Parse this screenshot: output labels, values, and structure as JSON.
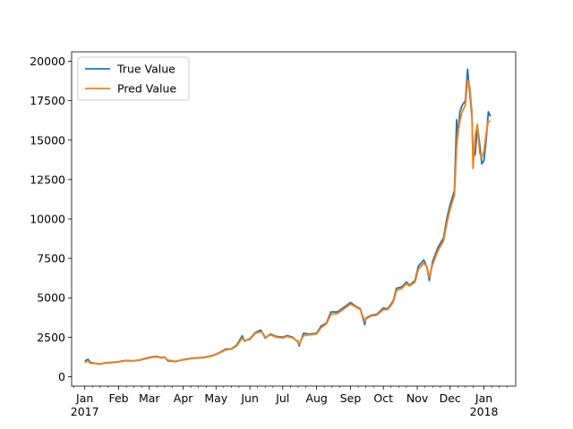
{
  "chart_data": {
    "type": "line",
    "title": "",
    "xlabel": "",
    "ylabel": "",
    "x_range": [
      "2016-12-20",
      "2018-01-30"
    ],
    "ylim": [
      -600,
      20600
    ],
    "yticks": [
      0,
      2500,
      5000,
      7500,
      10000,
      12500,
      15000,
      17500,
      20000
    ],
    "ytick_labels": [
      "0",
      "2500",
      "5000",
      "7500",
      "10000",
      "12500",
      "15000",
      "17500",
      "20000"
    ],
    "month_ticks": [
      {
        "date": "2017-01-01",
        "label": "Jan",
        "year": "2017"
      },
      {
        "date": "2017-02-01",
        "label": "Feb"
      },
      {
        "date": "2017-03-01",
        "label": "Mar"
      },
      {
        "date": "2017-04-01",
        "label": "Apr"
      },
      {
        "date": "2017-05-01",
        "label": "May"
      },
      {
        "date": "2017-06-01",
        "label": "Jun"
      },
      {
        "date": "2017-07-01",
        "label": "Jul"
      },
      {
        "date": "2017-08-01",
        "label": "Aug"
      },
      {
        "date": "2017-09-01",
        "label": "Sep"
      },
      {
        "date": "2017-10-01",
        "label": "Oct"
      },
      {
        "date": "2017-11-01",
        "label": "Nov"
      },
      {
        "date": "2017-12-01",
        "label": "Dec"
      },
      {
        "date": "2018-01-01",
        "label": "Jan",
        "year": "2018"
      }
    ],
    "grid": false,
    "legend_position": "top-left",
    "series": [
      {
        "name": "True Value",
        "color": "#1f77b4",
        "points": [
          [
            "2017-01-01",
            1000
          ],
          [
            "2017-01-04",
            1100
          ],
          [
            "2017-01-06",
            900
          ],
          [
            "2017-01-10",
            850
          ],
          [
            "2017-01-15",
            800
          ],
          [
            "2017-01-20",
            880
          ],
          [
            "2017-01-25",
            900
          ],
          [
            "2017-02-01",
            950
          ],
          [
            "2017-02-07",
            1020
          ],
          [
            "2017-02-14",
            1000
          ],
          [
            "2017-02-20",
            1050
          ],
          [
            "2017-02-25",
            1150
          ],
          [
            "2017-03-03",
            1250
          ],
          [
            "2017-03-08",
            1280
          ],
          [
            "2017-03-12",
            1200
          ],
          [
            "2017-03-15",
            1250
          ],
          [
            "2017-03-18",
            1000
          ],
          [
            "2017-03-25",
            950
          ],
          [
            "2017-04-01",
            1080
          ],
          [
            "2017-04-10",
            1180
          ],
          [
            "2017-04-20",
            1220
          ],
          [
            "2017-04-28",
            1340
          ],
          [
            "2017-05-05",
            1550
          ],
          [
            "2017-05-10",
            1750
          ],
          [
            "2017-05-15",
            1760
          ],
          [
            "2017-05-20",
            2000
          ],
          [
            "2017-05-25",
            2600
          ],
          [
            "2017-05-27",
            2250
          ],
          [
            "2017-06-01",
            2400
          ],
          [
            "2017-06-06",
            2800
          ],
          [
            "2017-06-11",
            2950
          ],
          [
            "2017-06-13",
            2700
          ],
          [
            "2017-06-15",
            2450
          ],
          [
            "2017-06-20",
            2700
          ],
          [
            "2017-06-25",
            2550
          ],
          [
            "2017-07-01",
            2500
          ],
          [
            "2017-07-05",
            2600
          ],
          [
            "2017-07-10",
            2500
          ],
          [
            "2017-07-15",
            2200
          ],
          [
            "2017-07-16",
            1950
          ],
          [
            "2017-07-20",
            2750
          ],
          [
            "2017-07-25",
            2700
          ],
          [
            "2017-08-01",
            2750
          ],
          [
            "2017-08-05",
            3200
          ],
          [
            "2017-08-10",
            3400
          ],
          [
            "2017-08-14",
            4100
          ],
          [
            "2017-08-20",
            4100
          ],
          [
            "2017-08-25",
            4350
          ],
          [
            "2017-09-01",
            4700
          ],
          [
            "2017-09-05",
            4500
          ],
          [
            "2017-09-10",
            4300
          ],
          [
            "2017-09-14",
            3300
          ],
          [
            "2017-09-15",
            3700
          ],
          [
            "2017-09-20",
            3900
          ],
          [
            "2017-09-25",
            3950
          ],
          [
            "2017-10-01",
            4350
          ],
          [
            "2017-10-05",
            4300
          ],
          [
            "2017-10-10",
            4800
          ],
          [
            "2017-10-13",
            5600
          ],
          [
            "2017-10-18",
            5700
          ],
          [
            "2017-10-22",
            6000
          ],
          [
            "2017-10-25",
            5800
          ],
          [
            "2017-10-30",
            6100
          ],
          [
            "2017-11-02",
            7000
          ],
          [
            "2017-11-07",
            7400
          ],
          [
            "2017-11-10",
            6900
          ],
          [
            "2017-11-12",
            6100
          ],
          [
            "2017-11-15",
            7300
          ],
          [
            "2017-11-20",
            8200
          ],
          [
            "2017-11-25",
            8800
          ],
          [
            "2017-11-28",
            10000
          ],
          [
            "2017-12-01",
            10900
          ],
          [
            "2017-12-05",
            11800
          ],
          [
            "2017-12-07",
            16300
          ],
          [
            "2017-12-08",
            15200
          ],
          [
            "2017-12-10",
            16800
          ],
          [
            "2017-12-12",
            17200
          ],
          [
            "2017-12-15",
            17500
          ],
          [
            "2017-12-17",
            19500
          ],
          [
            "2017-12-19",
            18000
          ],
          [
            "2017-12-21",
            16500
          ],
          [
            "2017-12-22",
            13900
          ],
          [
            "2017-12-24",
            14100
          ],
          [
            "2017-12-26",
            15900
          ],
          [
            "2017-12-28",
            14800
          ],
          [
            "2017-12-30",
            13500
          ],
          [
            "2018-01-01",
            13700
          ],
          [
            "2018-01-03",
            15000
          ],
          [
            "2018-01-05",
            16800
          ],
          [
            "2018-01-07",
            16500
          ]
        ]
      },
      {
        "name": "Pred Value",
        "color": "#ff7f0e",
        "points": [
          [
            "2017-01-01",
            900
          ],
          [
            "2017-01-04",
            1000
          ],
          [
            "2017-01-06",
            850
          ],
          [
            "2017-01-10",
            830
          ],
          [
            "2017-01-15",
            790
          ],
          [
            "2017-01-20",
            860
          ],
          [
            "2017-01-25",
            880
          ],
          [
            "2017-02-01",
            930
          ],
          [
            "2017-02-07",
            1000
          ],
          [
            "2017-02-14",
            990
          ],
          [
            "2017-02-20",
            1030
          ],
          [
            "2017-02-25",
            1120
          ],
          [
            "2017-03-03",
            1220
          ],
          [
            "2017-03-08",
            1250
          ],
          [
            "2017-03-12",
            1180
          ],
          [
            "2017-03-15",
            1230
          ],
          [
            "2017-03-18",
            1050
          ],
          [
            "2017-03-25",
            970
          ],
          [
            "2017-04-01",
            1060
          ],
          [
            "2017-04-10",
            1160
          ],
          [
            "2017-04-20",
            1200
          ],
          [
            "2017-04-28",
            1320
          ],
          [
            "2017-05-05",
            1520
          ],
          [
            "2017-05-10",
            1700
          ],
          [
            "2017-05-15",
            1740
          ],
          [
            "2017-05-20",
            1950
          ],
          [
            "2017-05-25",
            2450
          ],
          [
            "2017-05-27",
            2300
          ],
          [
            "2017-06-01",
            2350
          ],
          [
            "2017-06-06",
            2750
          ],
          [
            "2017-06-11",
            2850
          ],
          [
            "2017-06-13",
            2750
          ],
          [
            "2017-06-15",
            2500
          ],
          [
            "2017-06-20",
            2650
          ],
          [
            "2017-06-25",
            2500
          ],
          [
            "2017-07-01",
            2450
          ],
          [
            "2017-07-05",
            2550
          ],
          [
            "2017-07-10",
            2450
          ],
          [
            "2017-07-15",
            2250
          ],
          [
            "2017-07-16",
            2050
          ],
          [
            "2017-07-20",
            2600
          ],
          [
            "2017-07-25",
            2650
          ],
          [
            "2017-08-01",
            2700
          ],
          [
            "2017-08-05",
            3100
          ],
          [
            "2017-08-10",
            3350
          ],
          [
            "2017-08-14",
            3950
          ],
          [
            "2017-08-20",
            4000
          ],
          [
            "2017-08-25",
            4250
          ],
          [
            "2017-09-01",
            4600
          ],
          [
            "2017-09-05",
            4450
          ],
          [
            "2017-09-10",
            4250
          ],
          [
            "2017-09-14",
            3500
          ],
          [
            "2017-09-15",
            3650
          ],
          [
            "2017-09-20",
            3850
          ],
          [
            "2017-09-25",
            3900
          ],
          [
            "2017-10-01",
            4250
          ],
          [
            "2017-10-05",
            4250
          ],
          [
            "2017-10-10",
            4700
          ],
          [
            "2017-10-13",
            5450
          ],
          [
            "2017-10-18",
            5600
          ],
          [
            "2017-10-22",
            5900
          ],
          [
            "2017-10-25",
            5750
          ],
          [
            "2017-10-30",
            6000
          ],
          [
            "2017-11-02",
            6800
          ],
          [
            "2017-11-07",
            7200
          ],
          [
            "2017-11-10",
            6950
          ],
          [
            "2017-11-12",
            6300
          ],
          [
            "2017-11-15",
            7100
          ],
          [
            "2017-11-20",
            8000
          ],
          [
            "2017-11-25",
            8600
          ],
          [
            "2017-11-28",
            9700
          ],
          [
            "2017-12-01",
            10600
          ],
          [
            "2017-12-05",
            11500
          ],
          [
            "2017-12-07",
            14500
          ],
          [
            "2017-12-08",
            15400
          ],
          [
            "2017-12-10",
            16200
          ],
          [
            "2017-12-12",
            16800
          ],
          [
            "2017-12-15",
            17200
          ],
          [
            "2017-12-17",
            18800
          ],
          [
            "2017-12-19",
            18400
          ],
          [
            "2017-12-21",
            16800
          ],
          [
            "2017-12-22",
            13200
          ],
          [
            "2017-12-24",
            15300
          ],
          [
            "2017-12-26",
            16000
          ],
          [
            "2017-12-28",
            14200
          ],
          [
            "2017-12-30",
            13900
          ],
          [
            "2018-01-01",
            14300
          ],
          [
            "2018-01-03",
            15400
          ],
          [
            "2018-01-05",
            16200
          ],
          [
            "2018-01-07",
            16200
          ]
        ]
      }
    ]
  }
}
